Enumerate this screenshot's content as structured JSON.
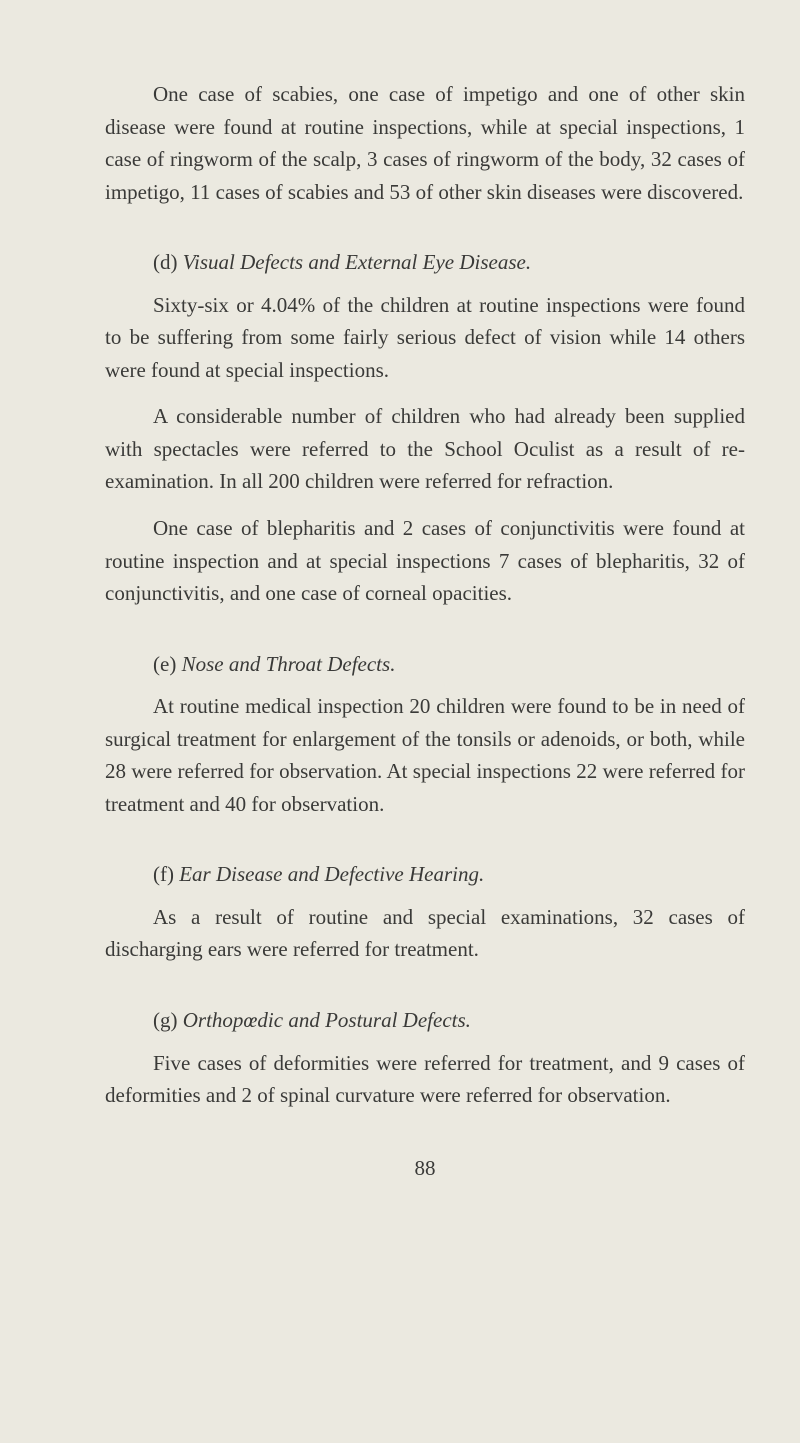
{
  "background_color": "#ebe9e0",
  "text_color": "#3a3a38",
  "font_family": "Georgia, serif",
  "base_fontsize": 21,
  "line_height": 1.55,
  "paragraphs": {
    "intro": "One case of scabies, one case of impetigo and one of other skin disease were found at routine inspections, while at special inspections, 1 case of ringworm of the scalp, 3 cases of ringworm of the body, 32 cases of impetigo, 11 cases of scabies and 53 of other skin diseases were discovered."
  },
  "sections": {
    "d": {
      "letter": "(d)",
      "title": "Visual Defects and External Eye Disease.",
      "p1": "Sixty-six or 4.04% of the children at routine inspections were found to be suffering from some fairly serious defect of vision while 14 others were found at special inspections.",
      "p2": "A considerable number of children who had already been supplied with spectacles were referred to the School Oculist as a result of re-examination. In all 200 children were referred for refraction.",
      "p3": "One case of blepharitis and 2 cases of conjunctivitis were found at routine inspection and at special inspections 7 cases of blepharitis, 32 of conjunctivitis, and one case of corneal opacities."
    },
    "e": {
      "letter": "(e)",
      "title": "Nose and Throat Defects.",
      "p1": "At routine medical inspection 20 children were found to be in need of surgical treatment for enlargement of the tonsils or adenoids, or both, while 28 were referred for observation. At special inspections 22 were referred for treatment and 40 for observation."
    },
    "f": {
      "letter": "(f)",
      "title": "Ear Disease and Defective Hearing.",
      "p1": "As a result of routine and special examinations, 32 cases of discharging ears were referred for treatment."
    },
    "g": {
      "letter": "(g)",
      "title": "Orthopœdic and Postural Defects.",
      "p1": "Five cases of deformities were referred for treatment, and 9 cases of deformities and 2 of spinal curvature were referred for observation."
    }
  },
  "page_number": "88"
}
